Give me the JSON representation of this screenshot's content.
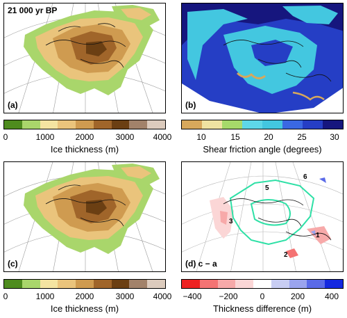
{
  "panels": {
    "a": {
      "letter": "(a)",
      "title": "21 000 yr BP"
    },
    "b": {
      "letter": "(b)"
    },
    "c": {
      "letter": "(c)"
    },
    "d": {
      "letter": "(d) c − a",
      "annotations": [
        "1",
        "2",
        "3",
        "5",
        "6"
      ]
    }
  },
  "colorbars": {
    "ice_thickness": {
      "label": "Ice thickness (m)",
      "ticks": [
        "0",
        "1000",
        "2000",
        "3000",
        "4000"
      ],
      "colors": [
        "#4e8c1e",
        "#a9d66b",
        "#f4e4a1",
        "#eac47c",
        "#cf9b50",
        "#a0652a",
        "#6b3f13",
        "#a2826a",
        "#dccbbd"
      ]
    },
    "shear_friction": {
      "label": "Shear friction angle (degrees)",
      "ticks": [
        "10",
        "15",
        "20",
        "25",
        "30"
      ],
      "colors": [
        "#d7a85c",
        "#efe3a2",
        "#a6d96a",
        "#5ed7e8",
        "#43c7e0",
        "#3a68e3",
        "#253ec5",
        "#16167e"
      ]
    },
    "thickness_diff": {
      "label": "Thickness difference (m)",
      "ticks": [
        "−400",
        "−200",
        "0",
        "200",
        "400"
      ],
      "colors": [
        "#ee2222",
        "#f47373",
        "#f7a9a9",
        "#fbd6d6",
        "#ffffff",
        "#c8cdf3",
        "#9aa4ee",
        "#5a6ae8",
        "#1428e0"
      ]
    }
  }
}
